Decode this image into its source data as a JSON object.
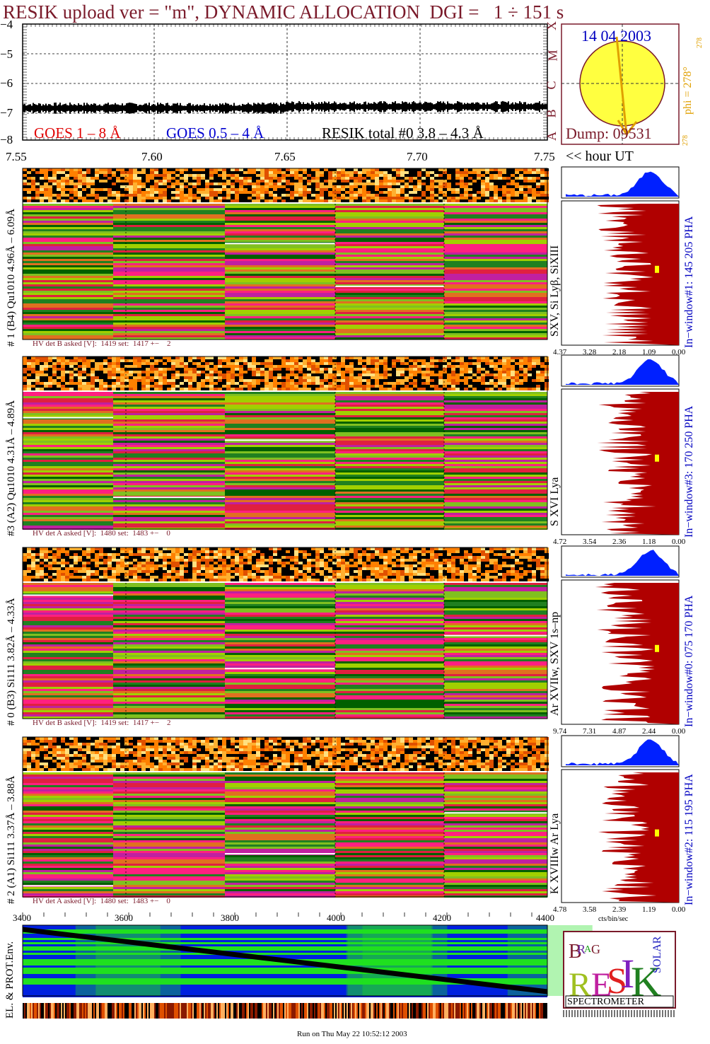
{
  "header": {
    "title": "RESIK upload ver = \"m\", DYNAMIC ALLOCATION  DGI =   1 ÷ 151 s"
  },
  "goes_panel": {
    "y_ticks": [
      "−4",
      "−5",
      "−6",
      "−7",
      "−8"
    ],
    "legend": {
      "goes_long": "GOES 1 – 8 Å",
      "goes_short": "GOES 0.5 – 4 Å",
      "resik_total": "RESIK total #0  3.8 – 4.3 Å"
    },
    "x_ticks": [
      "7.55",
      "7.60",
      "7.65",
      "7.70",
      "7.75"
    ],
    "x_unit": "<< hour UT",
    "right_letters": [
      "X",
      "M",
      "C",
      "B",
      "A"
    ]
  },
  "sun_panel": {
    "date": "14 04 2003",
    "dump": "Dump: 09531",
    "phi_label": "phi = 278°",
    "phi_sup": "278",
    "phi_bottom": "278"
  },
  "channels": [
    {
      "left_label": "# 1 (B4) Qu1010 4.96Å – 6.09Å",
      "line_label": "SXV, Si Lyβ, SiXIII",
      "window_label": "In−window#1:  145 205 PHA",
      "hv_text": "HV det B asked [V]:  1419 set:  1417 +−    2",
      "pha_ticks": [
        "4.37",
        "3.28",
        "2.18",
        "1.09",
        "0.00"
      ]
    },
    {
      "left_label": "#3 (A2) Qu1010  4.31Å – 4.89Å",
      "line_label": "S XVI Lya",
      "window_label": "In−window#3:  170 250 PHA",
      "hv_text": "HV det A asked [V]:  1480 set:  1483 +−    0",
      "pha_ticks": [
        "4.72",
        "3.54",
        "2.36",
        "1.18",
        "0.00"
      ]
    },
    {
      "left_label": "# 0 (B3) Si111  3.82Å – 4.33Å",
      "line_label": "Ar XVIIw,  SXV 1s–np",
      "window_label": "In−window#0:  075 170 PHA",
      "hv_text": "HV det B asked [V]:  1419 set:  1417 +−    2",
      "pha_ticks": [
        "9.74",
        "7.31",
        "4.87",
        "2.44",
        "0.00"
      ]
    },
    {
      "left_label": "# 2 (A1) Si111  3.37Å – 3.88Å",
      "line_label": "K XVIIIw  Ar Lya",
      "window_label": "In−window#2:  115 195 PHA",
      "hv_text": "HV det A asked [V]:  1480 set:  1483 +−    0",
      "pha_ticks": [
        "4.78",
        "3.58",
        "2.39",
        "1.19",
        "0.00"
      ]
    }
  ],
  "pha_xlabel": "cts/bin/sec",
  "env_panel": {
    "label": "EL. & PROT.Env.",
    "x_ticks": [
      "3400",
      "3600",
      "3800",
      "4000",
      "4200",
      "4400"
    ]
  },
  "logo": {
    "text": "SPECTROMETER",
    "letters": [
      "B",
      "R",
      "A",
      "G",
      "R",
      "E",
      "S",
      "I",
      "K",
      "S",
      "O",
      "L",
      "A",
      "R"
    ]
  },
  "footer": {
    "run": "Run on Thu May 22 10:52:12 2003"
  },
  "colors": {
    "title": "#7a1a2a",
    "goes_long": "#e00000",
    "goes_short": "#0000d0",
    "pha_fill": "#b00000",
    "pha_blue": "#0020ff",
    "sun": "#ffff40",
    "env_blue": "#0020e0",
    "env_green": "#20e020"
  },
  "chart_data": {
    "type": "line",
    "title": "RESIK upload ver = \"m\", DYNAMIC ALLOCATION  DGI =   1 ÷ 151 s",
    "xlabel": "<< hour UT",
    "x_range": [
      7.55,
      7.75
    ],
    "ylim": [
      -8,
      -4
    ],
    "series": [
      {
        "name": "RESIK total #0  3.8 – 4.3 Å",
        "x": [
          7.55,
          7.6,
          7.65,
          7.7,
          7.75
        ],
        "values": [
          -6.9,
          -6.9,
          -6.85,
          -6.85,
          -6.85
        ]
      }
    ],
    "grid": true
  }
}
